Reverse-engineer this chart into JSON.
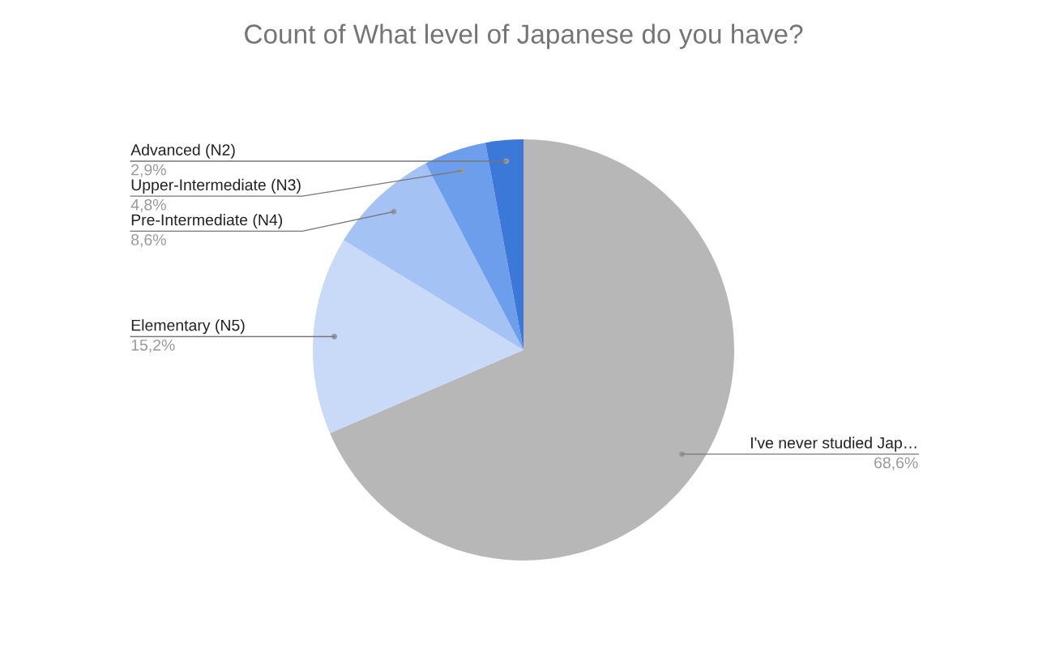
{
  "chart_data": {
    "type": "pie",
    "title": "Count of What level of Japanese do you have?",
    "categories": [
      "I've never studied Jap…",
      "Elementary (N5)",
      "Pre-Intermediate (N4)",
      "Upper-Intermediate (N3)",
      "Advanced (N2)"
    ],
    "values": [
      68.6,
      15.2,
      8.6,
      4.8,
      2.9
    ],
    "value_labels": [
      "68,6%",
      "15,2%",
      "8,6%",
      "4,8%",
      "2,9%"
    ],
    "colors": [
      "#b7b7b7",
      "#c9daf8",
      "#a4c2f4",
      "#6d9eeb",
      "#3c78d8"
    ],
    "legend": false
  }
}
